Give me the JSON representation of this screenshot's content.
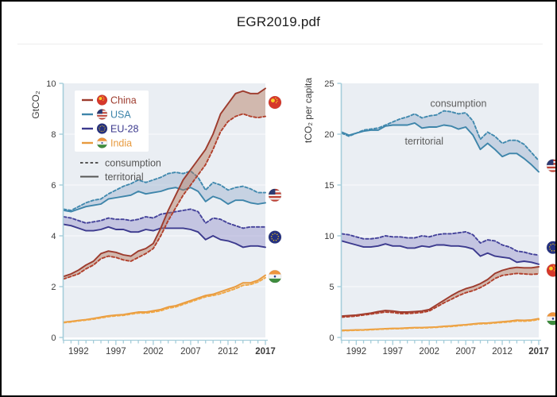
{
  "window": {
    "title": "EGR2019.pdf"
  },
  "colors": {
    "page_bg": "#ffffff",
    "frame_border": "#000000",
    "divider": "#ededed",
    "plot_bg": "#eaeef3",
    "gridline": "#f6f8fa",
    "axis": "#a5cdda",
    "tick_text": "#3d3d3d",
    "muted_text": "#5c5c5c",
    "legend_text": "#555555",
    "title_text": "#1c1c1c"
  },
  "countries": [
    {
      "id": "china",
      "label": "China",
      "flag": "china",
      "line": "#9d3b2d",
      "dash": "#b1402c",
      "fill": "#b4765b",
      "fill_opacity": 0.45
    },
    {
      "id": "usa",
      "label": "USA",
      "flag": "usa",
      "line": "#3e85aa",
      "dash": "#4189ae",
      "fill": "#a7bcd4",
      "fill_opacity": 0.55
    },
    {
      "id": "eu",
      "label": "EU-28",
      "flag": "eu",
      "line": "#3c3a8e",
      "dash": "#44429a",
      "fill": "#9e9ccf",
      "fill_opacity": 0.5
    },
    {
      "id": "india",
      "label": "India",
      "flag": "india",
      "line": "#e89a3e",
      "dash": "#f0a746",
      "fill": "#f0c080",
      "fill_opacity": 0.5
    }
  ],
  "legend": {
    "modes": [
      {
        "id": "consumption",
        "label": "consumption",
        "line_style": "dashed"
      },
      {
        "id": "territorial",
        "label": "territorial",
        "line_style": "solid"
      }
    ]
  },
  "flag_colors": {
    "china": {
      "bg": "#d6382b",
      "star": "#f8d027"
    },
    "usa": {
      "bg": "#f2f2f2",
      "stripe": "#c04034",
      "canton": "#2c3a72"
    },
    "eu": {
      "bg": "#253180",
      "star": "#f3c71c"
    },
    "india": {
      "saffron": "#ee943c",
      "white": "#f5f5f5",
      "green": "#3e8c3e",
      "chakra": "#2b3f8c"
    }
  },
  "chart_data": [
    {
      "id": "gtco2",
      "type": "line",
      "ylabel": "GtCO₂",
      "ylim": [
        0,
        10
      ],
      "yticks": [
        0,
        2,
        4,
        6,
        8,
        10
      ],
      "x_years": [
        1990,
        2017
      ],
      "xticks": [
        1992,
        1997,
        2002,
        2007,
        2012,
        2017
      ],
      "xtick_bold": 2017,
      "grid": true,
      "legend_visible": true,
      "series": [
        {
          "country": "china",
          "mode": "territorial",
          "values": [
            2.4,
            2.5,
            2.65,
            2.85,
            3.0,
            3.3,
            3.4,
            3.35,
            3.25,
            3.2,
            3.4,
            3.5,
            3.7,
            4.3,
            5.0,
            5.6,
            6.2,
            6.6,
            7.0,
            7.4,
            8.0,
            8.8,
            9.2,
            9.6,
            9.7,
            9.6,
            9.6,
            9.8
          ]
        },
        {
          "country": "china",
          "mode": "consumption",
          "values": [
            2.3,
            2.4,
            2.5,
            2.7,
            2.85,
            3.1,
            3.2,
            3.15,
            3.05,
            3.0,
            3.15,
            3.3,
            3.5,
            4.0,
            4.6,
            5.1,
            5.6,
            6.0,
            6.4,
            6.8,
            7.4,
            8.1,
            8.5,
            8.7,
            8.8,
            8.7,
            8.65,
            8.7
          ]
        },
        {
          "country": "usa",
          "mode": "territorial",
          "values": [
            5.0,
            4.95,
            5.05,
            5.15,
            5.2,
            5.25,
            5.45,
            5.5,
            5.55,
            5.6,
            5.75,
            5.65,
            5.7,
            5.75,
            5.85,
            5.9,
            5.8,
            5.9,
            5.75,
            5.35,
            5.55,
            5.45,
            5.25,
            5.4,
            5.4,
            5.3,
            5.25,
            5.3
          ]
        },
        {
          "country": "usa",
          "mode": "consumption",
          "values": [
            5.05,
            5.0,
            5.15,
            5.3,
            5.4,
            5.45,
            5.65,
            5.8,
            5.95,
            6.05,
            6.2,
            6.1,
            6.2,
            6.3,
            6.45,
            6.5,
            6.45,
            6.55,
            6.3,
            5.8,
            6.1,
            6.0,
            5.8,
            5.9,
            5.95,
            5.85,
            5.7,
            5.7
          ]
        },
        {
          "country": "eu",
          "mode": "territorial",
          "values": [
            4.45,
            4.4,
            4.3,
            4.2,
            4.2,
            4.25,
            4.35,
            4.25,
            4.25,
            4.15,
            4.15,
            4.25,
            4.2,
            4.3,
            4.3,
            4.3,
            4.3,
            4.25,
            4.15,
            3.85,
            4.0,
            3.85,
            3.8,
            3.7,
            3.55,
            3.6,
            3.6,
            3.55
          ]
        },
        {
          "country": "eu",
          "mode": "consumption",
          "values": [
            4.75,
            4.7,
            4.6,
            4.5,
            4.55,
            4.6,
            4.7,
            4.65,
            4.65,
            4.6,
            4.65,
            4.75,
            4.7,
            4.85,
            4.9,
            4.95,
            5.0,
            5.05,
            4.95,
            4.5,
            4.7,
            4.65,
            4.5,
            4.4,
            4.3,
            4.35,
            4.35,
            4.35
          ]
        },
        {
          "country": "india",
          "mode": "territorial",
          "values": [
            0.6,
            0.63,
            0.67,
            0.7,
            0.75,
            0.8,
            0.85,
            0.88,
            0.9,
            0.95,
            1.0,
            1.0,
            1.05,
            1.1,
            1.2,
            1.25,
            1.35,
            1.45,
            1.55,
            1.65,
            1.7,
            1.8,
            1.9,
            2.0,
            2.15,
            2.15,
            2.25,
            2.45
          ]
        },
        {
          "country": "india",
          "mode": "consumption",
          "values": [
            0.58,
            0.61,
            0.65,
            0.68,
            0.72,
            0.77,
            0.82,
            0.85,
            0.87,
            0.92,
            0.96,
            0.96,
            1.0,
            1.05,
            1.15,
            1.2,
            1.3,
            1.4,
            1.5,
            1.6,
            1.65,
            1.72,
            1.82,
            1.92,
            2.05,
            2.08,
            2.18,
            2.35
          ]
        }
      ],
      "markers": [
        {
          "country": "china",
          "value": 9.25
        },
        {
          "country": "usa",
          "value": 5.6
        },
        {
          "country": "eu",
          "value": 3.95
        },
        {
          "country": "india",
          "value": 2.4
        }
      ]
    },
    {
      "id": "percapita",
      "type": "line",
      "ylabel": "tCO₂ per capita",
      "ylim": [
        0,
        25
      ],
      "yticks": [
        0,
        5,
        10,
        15,
        20,
        25
      ],
      "x_years": [
        1990,
        2017
      ],
      "xticks": [
        1992,
        1997,
        2002,
        2007,
        2012,
        2017
      ],
      "xtick_bold": 2017,
      "grid": true,
      "legend_visible": false,
      "annotations": [
        {
          "label": "consumption",
          "year": 2006,
          "value": 23.0
        },
        {
          "label": "territorial",
          "year": 2001.3,
          "value": 19.3
        }
      ],
      "series": [
        {
          "country": "usa",
          "mode": "territorial",
          "values": [
            20.2,
            19.9,
            20.1,
            20.3,
            20.4,
            20.4,
            20.8,
            20.9,
            20.9,
            20.9,
            21.1,
            20.6,
            20.7,
            20.7,
            20.9,
            20.8,
            20.5,
            20.7,
            19.9,
            18.5,
            19.1,
            18.5,
            17.8,
            18.1,
            18.1,
            17.6,
            17.0,
            16.3
          ]
        },
        {
          "country": "usa",
          "mode": "consumption",
          "values": [
            20.1,
            19.8,
            20.1,
            20.4,
            20.5,
            20.6,
            20.9,
            21.2,
            21.5,
            21.7,
            22.0,
            21.6,
            21.8,
            21.9,
            22.3,
            22.2,
            22.0,
            22.1,
            21.3,
            19.5,
            20.2,
            19.8,
            19.1,
            19.4,
            19.4,
            19.0,
            18.2,
            17.4
          ]
        },
        {
          "country": "eu",
          "mode": "territorial",
          "values": [
            9.5,
            9.3,
            9.1,
            8.9,
            8.9,
            9.0,
            9.2,
            9.0,
            9.0,
            8.8,
            8.8,
            9.0,
            8.9,
            9.1,
            9.1,
            9.0,
            9.0,
            8.9,
            8.7,
            8.0,
            8.3,
            8.0,
            7.9,
            7.8,
            7.4,
            7.5,
            7.4,
            7.2
          ]
        },
        {
          "country": "eu",
          "mode": "consumption",
          "values": [
            10.2,
            10.1,
            9.9,
            9.7,
            9.7,
            9.8,
            10.0,
            9.9,
            9.9,
            9.8,
            9.8,
            10.0,
            9.9,
            10.1,
            10.2,
            10.2,
            10.3,
            10.4,
            10.1,
            9.3,
            9.6,
            9.5,
            9.1,
            8.9,
            8.5,
            8.4,
            8.2,
            8.1
          ]
        },
        {
          "country": "china",
          "mode": "territorial",
          "values": [
            2.1,
            2.15,
            2.2,
            2.3,
            2.4,
            2.55,
            2.65,
            2.6,
            2.5,
            2.5,
            2.55,
            2.6,
            2.75,
            3.2,
            3.65,
            4.1,
            4.5,
            4.8,
            5.0,
            5.3,
            5.7,
            6.3,
            6.6,
            6.8,
            6.9,
            6.85,
            6.85,
            6.95
          ]
        },
        {
          "country": "china",
          "mode": "consumption",
          "values": [
            2.0,
            2.05,
            2.1,
            2.2,
            2.3,
            2.4,
            2.5,
            2.45,
            2.35,
            2.35,
            2.4,
            2.45,
            2.6,
            3.0,
            3.4,
            3.75,
            4.1,
            4.4,
            4.6,
            4.9,
            5.3,
            5.8,
            6.1,
            6.2,
            6.3,
            6.25,
            6.2,
            6.25
          ]
        },
        {
          "country": "india",
          "mode": "territorial",
          "values": [
            0.7,
            0.72,
            0.74,
            0.76,
            0.8,
            0.83,
            0.87,
            0.89,
            0.9,
            0.94,
            0.97,
            0.97,
            1.0,
            1.03,
            1.1,
            1.13,
            1.2,
            1.26,
            1.33,
            1.4,
            1.42,
            1.48,
            1.55,
            1.6,
            1.7,
            1.68,
            1.73,
            1.85
          ]
        },
        {
          "country": "india",
          "mode": "consumption",
          "values": [
            0.66,
            0.68,
            0.7,
            0.72,
            0.76,
            0.79,
            0.83,
            0.85,
            0.86,
            0.9,
            0.93,
            0.93,
            0.96,
            0.99,
            1.05,
            1.08,
            1.15,
            1.21,
            1.28,
            1.34,
            1.36,
            1.42,
            1.48,
            1.53,
            1.62,
            1.6,
            1.65,
            1.76
          ]
        }
      ],
      "markers": [
        {
          "country": "usa",
          "value": 16.9
        },
        {
          "country": "eu",
          "value": 8.85
        },
        {
          "country": "china",
          "value": 6.6
        },
        {
          "country": "india",
          "value": 1.85
        }
      ]
    }
  ]
}
